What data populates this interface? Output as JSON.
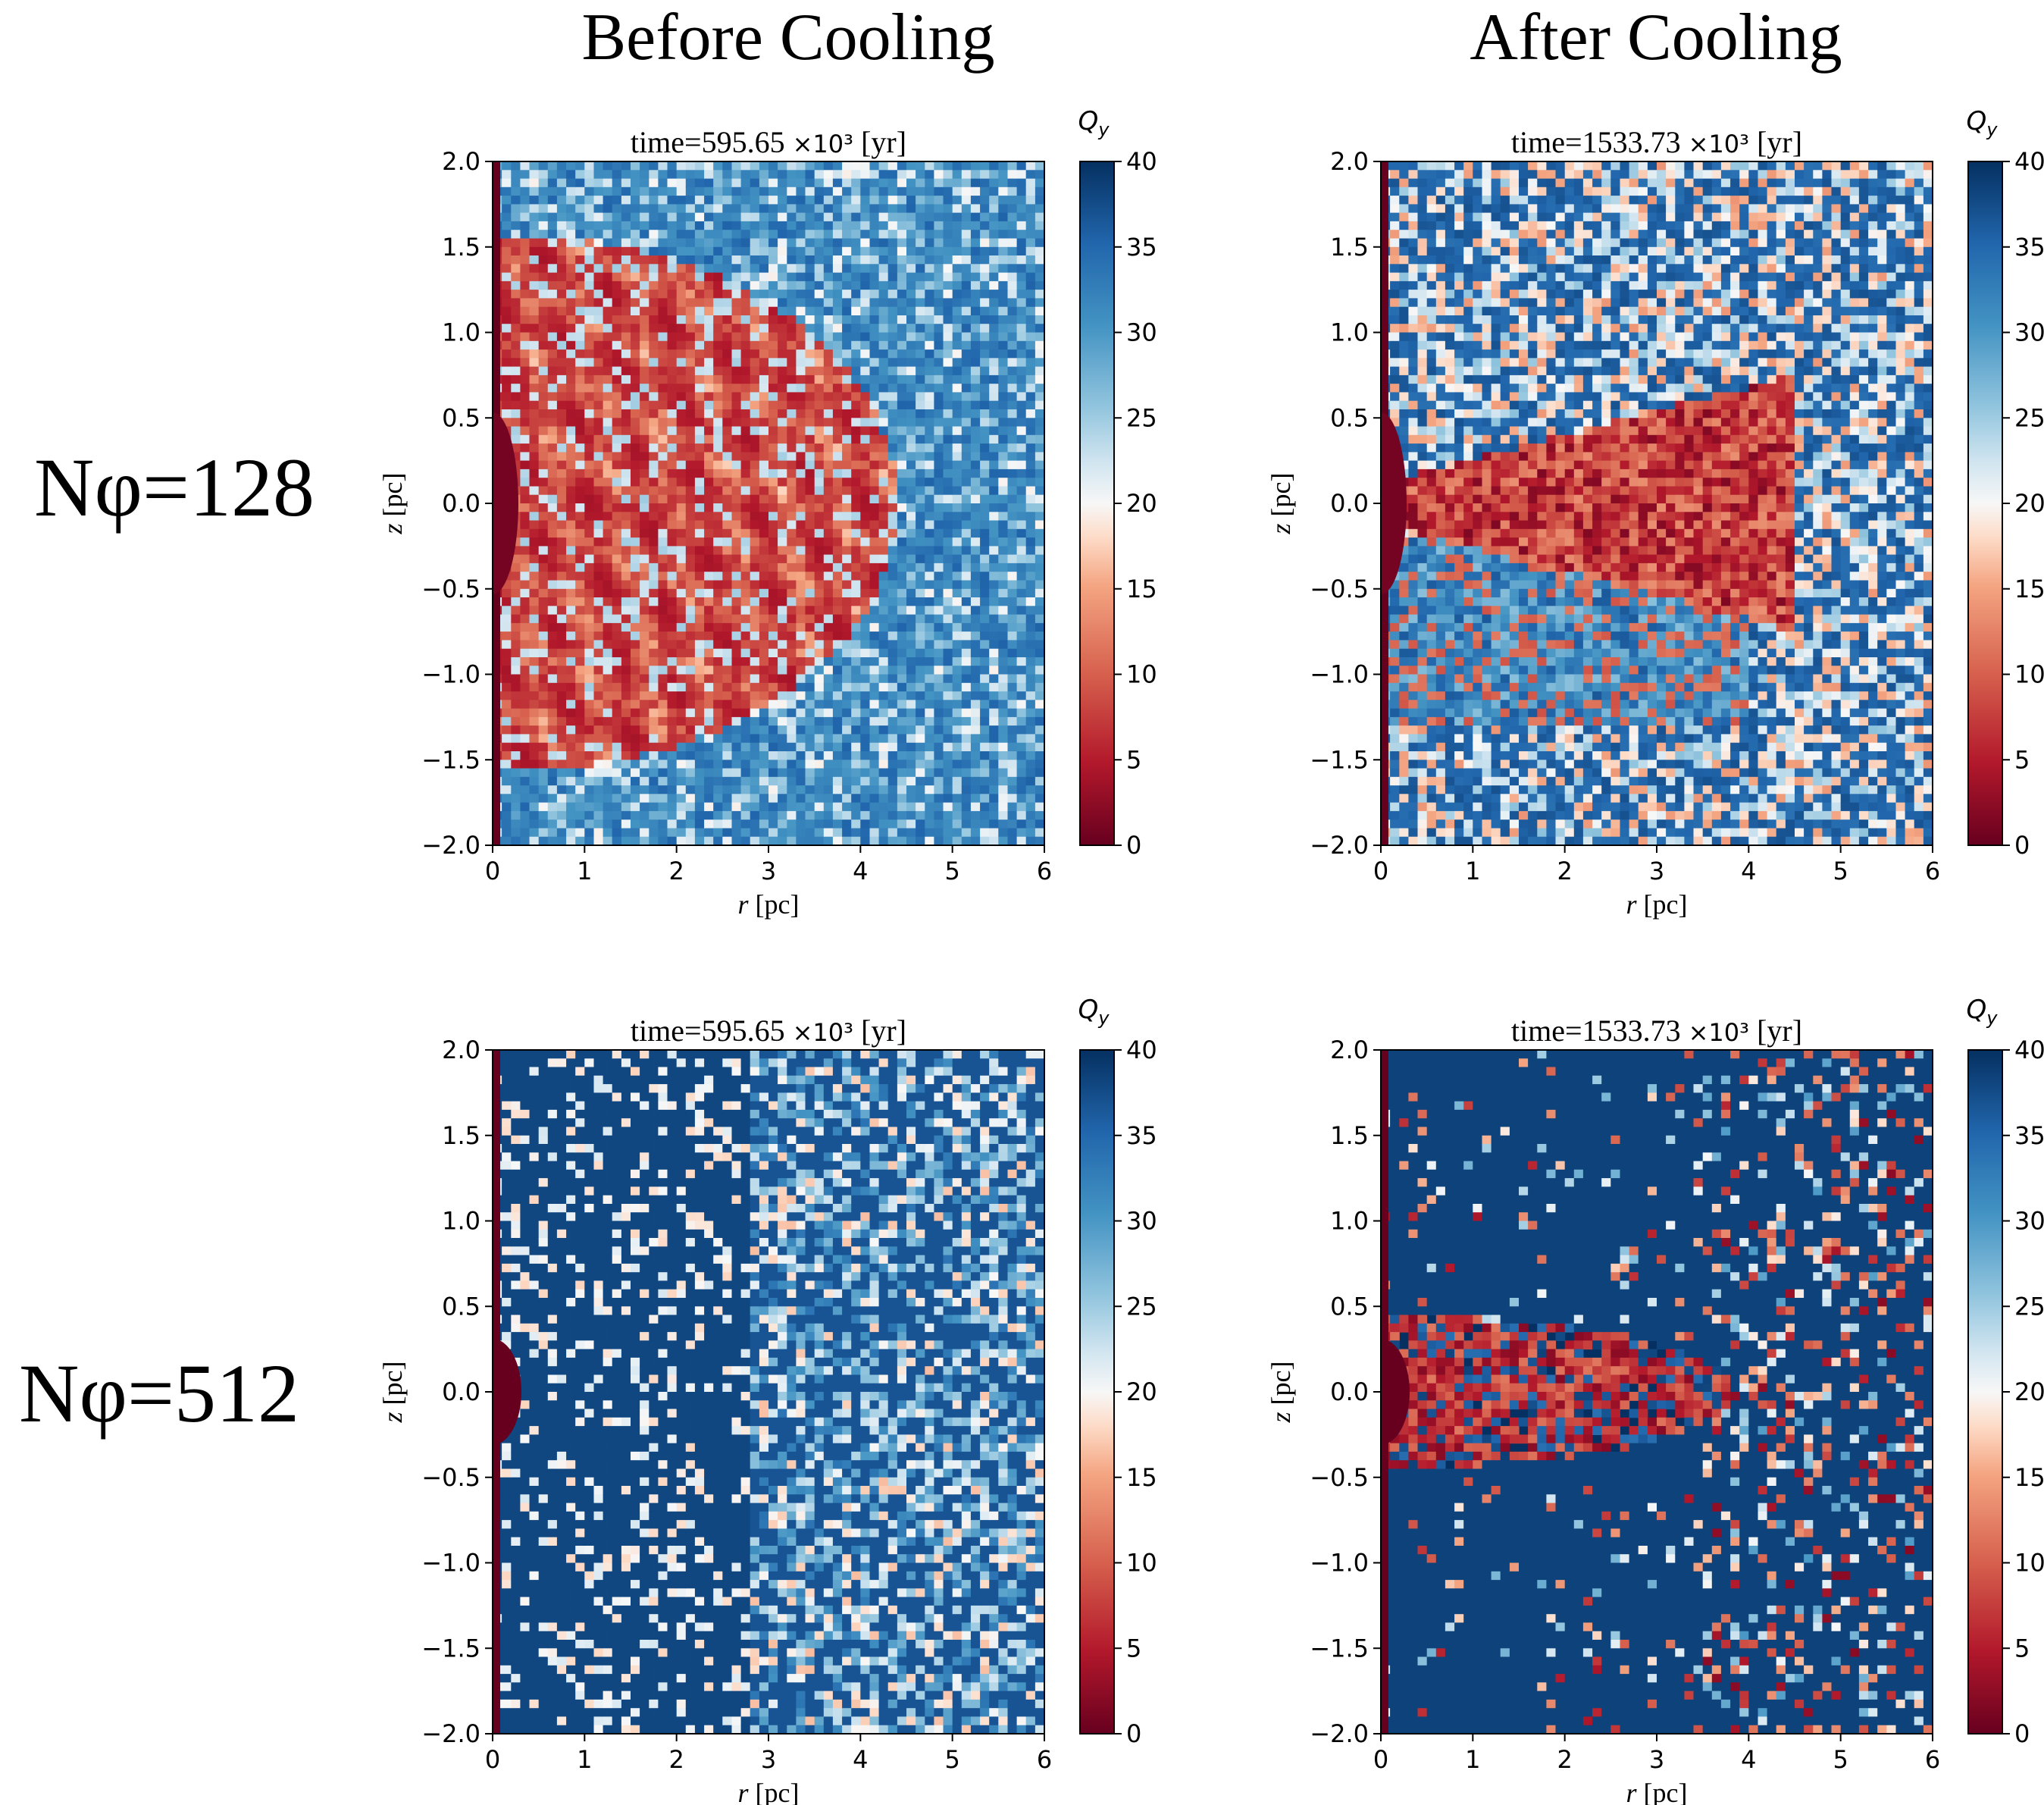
{
  "columns": [
    {
      "title": "Before Cooling"
    },
    {
      "title": "After Cooling"
    }
  ],
  "rows": [
    {
      "label": "Nφ=128"
    },
    {
      "label": "Nφ=512"
    }
  ],
  "colors": {
    "cmap_low": "#67001f",
    "cmap_mid": "#f7f7f7",
    "cmap_high": "#053061",
    "cmap_name": "RdBu"
  },
  "chart_data": [
    {
      "type": "heatmap",
      "row": 0,
      "col": 0,
      "title": "time=595.65",
      "title_unit": "×10³",
      "title_bracket": "[yr]",
      "xlabel_var": "r",
      "xlabel_unit": "[pc]",
      "ylabel_var": "z",
      "ylabel_unit": "[pc]",
      "xlim": [
        0,
        6
      ],
      "ylim": [
        -2,
        2
      ],
      "xticks": [
        "0",
        "1",
        "2",
        "3",
        "4",
        "5",
        "6"
      ],
      "yticks": [
        "−2.0",
        "−1.5",
        "−1.0",
        "−0.5",
        "0.0",
        "0.5",
        "1.0",
        "1.5",
        "2.0"
      ],
      "colorbar_label": "Q",
      "colorbar_sub": "y",
      "clim": [
        0,
        40
      ],
      "colorbar_ticks": [
        "0",
        "5",
        "10",
        "15",
        "20",
        "25",
        "30",
        "35",
        "40"
      ]
    },
    {
      "type": "heatmap",
      "row": 0,
      "col": 1,
      "title": "time=1533.73",
      "title_unit": "×10³",
      "title_bracket": "[yr]",
      "xlabel_var": "r",
      "xlabel_unit": "[pc]",
      "ylabel_var": "z",
      "ylabel_unit": "[pc]",
      "xlim": [
        0,
        6
      ],
      "ylim": [
        -2,
        2
      ],
      "xticks": [
        "0",
        "1",
        "2",
        "3",
        "4",
        "5",
        "6"
      ],
      "yticks": [
        "−2.0",
        "−1.5",
        "−1.0",
        "−0.5",
        "0.0",
        "0.5",
        "1.0",
        "1.5",
        "2.0"
      ],
      "colorbar_label": "Q",
      "colorbar_sub": "y",
      "clim": [
        0,
        40
      ],
      "colorbar_ticks": [
        "0",
        "5",
        "10",
        "15",
        "20",
        "25",
        "30",
        "35",
        "40"
      ]
    },
    {
      "type": "heatmap",
      "row": 1,
      "col": 0,
      "title": "time=595.65",
      "title_unit": "×10³",
      "title_bracket": "[yr]",
      "xlabel_var": "r",
      "xlabel_unit": "[pc]",
      "ylabel_var": "z",
      "ylabel_unit": "[pc]",
      "xlim": [
        0,
        6
      ],
      "ylim": [
        -2,
        2
      ],
      "xticks": [
        "0",
        "1",
        "2",
        "3",
        "4",
        "5",
        "6"
      ],
      "yticks": [
        "−2.0",
        "−1.5",
        "−1.0",
        "−0.5",
        "0.0",
        "0.5",
        "1.0",
        "1.5",
        "2.0"
      ],
      "colorbar_label": "Q",
      "colorbar_sub": "y",
      "clim": [
        0,
        40
      ],
      "colorbar_ticks": [
        "0",
        "5",
        "10",
        "15",
        "20",
        "25",
        "30",
        "35",
        "40"
      ]
    },
    {
      "type": "heatmap",
      "row": 1,
      "col": 1,
      "title": "time=1533.73",
      "title_unit": "×10³",
      "title_bracket": "[yr]",
      "xlabel_var": "r",
      "xlabel_unit": "[pc]",
      "ylabel_var": "z",
      "ylabel_unit": "[pc]",
      "xlim": [
        0,
        6
      ],
      "ylim": [
        -2,
        2
      ],
      "xticks": [
        "0",
        "1",
        "2",
        "3",
        "4",
        "5",
        "6"
      ],
      "yticks": [
        "−2.0",
        "−1.5",
        "−1.0",
        "−0.5",
        "0.0",
        "0.5",
        "1.0",
        "1.5",
        "2.0"
      ],
      "colorbar_label": "Q",
      "colorbar_sub": "y",
      "clim": [
        0,
        40
      ],
      "colorbar_ticks": [
        "0",
        "5",
        "10",
        "15",
        "20",
        "25",
        "30",
        "35",
        "40"
      ]
    }
  ]
}
